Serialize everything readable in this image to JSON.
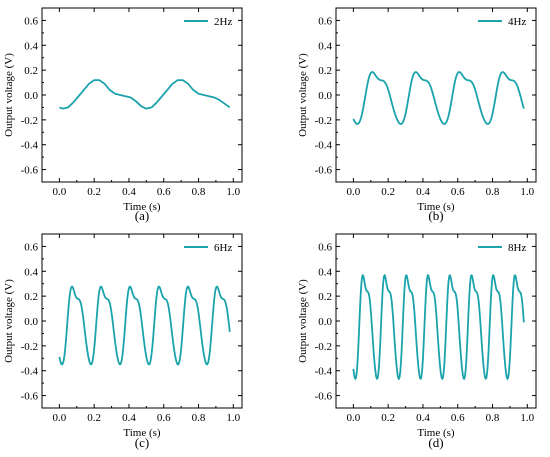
{
  "colors": {
    "series": "#1aa3ab",
    "axis": "#000000"
  },
  "chart_data": [
    {
      "type": "line",
      "caption": "(a)",
      "legend": "2Hz",
      "xlabel": "Time (s)",
      "ylabel": "Output voltage (V)",
      "xlim": [
        -0.1,
        1.05
      ],
      "ylim": [
        -0.7,
        0.7
      ],
      "xticks": [
        "0.0",
        "0.2",
        "0.4",
        "0.6",
        "0.8",
        "1.0"
      ],
      "yticks": [
        "-0.6",
        "-0.4",
        "-0.2",
        "0.0",
        "0.2",
        "0.4",
        "0.6"
      ],
      "series": [
        {
          "x": [
            0,
            0.02,
            0.05,
            0.08,
            0.11,
            0.14,
            0.17,
            0.2,
            0.23,
            0.26,
            0.29,
            0.32,
            0.35,
            0.38,
            0.41,
            0.44,
            0.47,
            0.5,
            0.53,
            0.56,
            0.59,
            0.62,
            0.65,
            0.68,
            0.71,
            0.74,
            0.77,
            0.8,
            0.83,
            0.86,
            0.89,
            0.92,
            0.95,
            0.98
          ],
          "y": [
            -0.1,
            -0.11,
            -0.1,
            -0.06,
            -0.01,
            0.04,
            0.09,
            0.12,
            0.12,
            0.09,
            0.04,
            0.01,
            0.0,
            -0.01,
            -0.02,
            -0.05,
            -0.09,
            -0.11,
            -0.1,
            -0.06,
            -0.01,
            0.04,
            0.09,
            0.12,
            0.12,
            0.09,
            0.04,
            0.01,
            0.0,
            -0.01,
            -0.02,
            -0.04,
            -0.07,
            -0.1
          ]
        }
      ]
    },
    {
      "type": "line",
      "caption": "(b)",
      "legend": "4Hz",
      "xlabel": "Time (s)",
      "ylabel": "Output voltage (V)",
      "xlim": [
        -0.1,
        1.05
      ],
      "ylim": [
        -0.7,
        0.7
      ],
      "xticks": [
        "0.0",
        "0.2",
        "0.4",
        "0.6",
        "0.8",
        "1.0"
      ],
      "yticks": [
        "-0.6",
        "-0.4",
        "-0.2",
        "0.0",
        "0.2",
        "0.4",
        "0.6"
      ],
      "freq": 4,
      "amp": 0.24
    },
    {
      "type": "line",
      "caption": "(c)",
      "legend": "6Hz",
      "xlabel": "Time (s)",
      "ylabel": "Output voltage (V)",
      "xlim": [
        -0.1,
        1.05
      ],
      "ylim": [
        -0.7,
        0.7
      ],
      "xticks": [
        "0.0",
        "0.2",
        "0.4",
        "0.6",
        "0.8",
        "1.0"
      ],
      "yticks": [
        "-0.6",
        "-0.4",
        "-0.2",
        "0.0",
        "0.2",
        "0.4",
        "0.6"
      ],
      "freq": 6,
      "amp": 0.36
    },
    {
      "type": "line",
      "caption": "(d)",
      "legend": "8Hz",
      "xlabel": "Time (s)",
      "ylabel": "Output voltage (V)",
      "xlim": [
        -0.1,
        1.05
      ],
      "ylim": [
        -0.7,
        0.7
      ],
      "xticks": [
        "0.0",
        "0.2",
        "0.4",
        "0.6",
        "0.8",
        "1.0"
      ],
      "yticks": [
        "-0.6",
        "-0.4",
        "-0.2",
        "0.0",
        "0.2",
        "0.4",
        "0.6"
      ],
      "freq": 8,
      "amp": 0.48
    }
  ]
}
